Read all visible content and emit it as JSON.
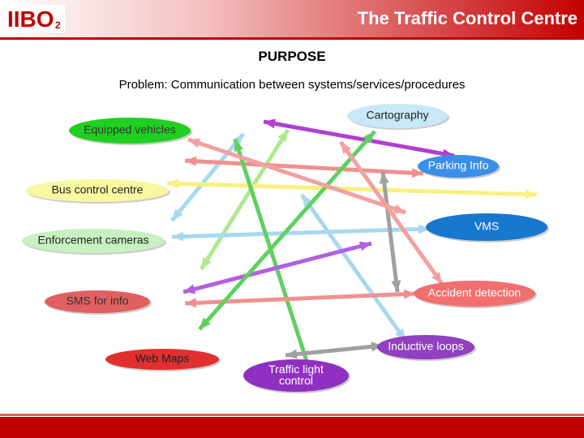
{
  "header": {
    "logo": "IIBO",
    "logo_sub": "2",
    "title": "The Traffic Control Centre"
  },
  "heading": "PURPOSE",
  "problem": "Problem: Communication between systems/services/procedures",
  "nodes": [
    {
      "label": "Cartography"
    },
    {
      "label": "Equipped vehicles"
    },
    {
      "label": "Parking Info"
    },
    {
      "label": "Bus control centre"
    },
    {
      "label": "VMS"
    },
    {
      "label": "Enforcement cameras"
    },
    {
      "label": "Accident detection"
    },
    {
      "label": "SMS for info"
    },
    {
      "label": "Inductive loops"
    },
    {
      "label": "Web Maps"
    },
    {
      "label": "Traffic light control"
    }
  ]
}
